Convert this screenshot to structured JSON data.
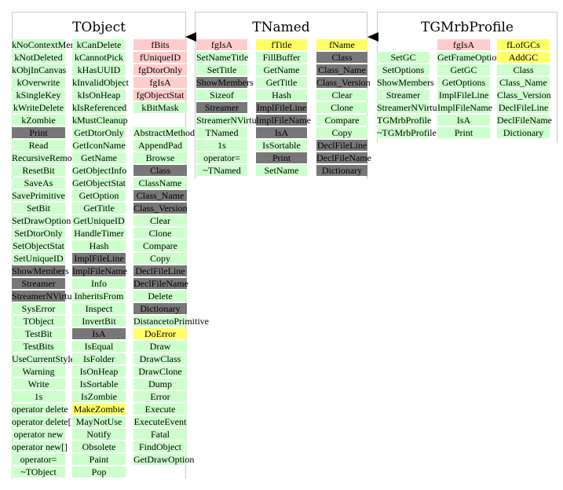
{
  "colors": {
    "method": "#ccffcc",
    "data_member": "#ffcccc",
    "highlight": "#ffff66",
    "inherited": "#777777"
  },
  "classes": [
    {
      "title": "TObject",
      "columns": [
        [
          {
            "t": "kNoContextMenu",
            "c": "green"
          },
          {
            "t": "kNotDeleted",
            "c": "green"
          },
          {
            "t": "kObjInCanvas",
            "c": "green"
          },
          {
            "t": "kOverwrite",
            "c": "green"
          },
          {
            "t": "kSingleKey",
            "c": "green"
          },
          {
            "t": "kWriteDelete",
            "c": "green"
          },
          {
            "t": "kZombie",
            "c": "green"
          },
          {
            "t": "Print",
            "c": "gray"
          },
          {
            "t": "Read",
            "c": "green"
          },
          {
            "t": "RecursiveRemove",
            "c": "green"
          },
          {
            "t": "ResetBit",
            "c": "green"
          },
          {
            "t": "SaveAs",
            "c": "green"
          },
          {
            "t": "SavePrimitive",
            "c": "green"
          },
          {
            "t": "SetBit",
            "c": "green"
          },
          {
            "t": "SetDrawOption",
            "c": "green"
          },
          {
            "t": "SetDtorOnly",
            "c": "green"
          },
          {
            "t": "SetObjectStat",
            "c": "green"
          },
          {
            "t": "SetUniqueID",
            "c": "green"
          },
          {
            "t": "ShowMembers",
            "c": "gray"
          },
          {
            "t": "Streamer",
            "c": "gray"
          },
          {
            "t": "StreamerNVirtual",
            "c": "gray"
          },
          {
            "t": "SysError",
            "c": "green"
          },
          {
            "t": "TObject",
            "c": "green"
          },
          {
            "t": "TestBit",
            "c": "green"
          },
          {
            "t": "TestBits",
            "c": "green"
          },
          {
            "t": "UseCurrentStyle",
            "c": "green"
          },
          {
            "t": "Warning",
            "c": "green"
          },
          {
            "t": "Write",
            "c": "green"
          },
          {
            "t": "1s",
            "c": "green"
          },
          {
            "t": "operator delete",
            "c": "green"
          },
          {
            "t": "operator delete[]",
            "c": "green"
          },
          {
            "t": "operator new",
            "c": "green"
          },
          {
            "t": "operator new[]",
            "c": "green"
          },
          {
            "t": "operator=",
            "c": "green"
          },
          {
            "t": "~TObject",
            "c": "green"
          }
        ],
        [
          {
            "t": "kCanDelete",
            "c": "green"
          },
          {
            "t": "kCannotPick",
            "c": "green"
          },
          {
            "t": "kHasUUID",
            "c": "green"
          },
          {
            "t": "kInvalidObject",
            "c": "green"
          },
          {
            "t": "kIsOnHeap",
            "c": "green"
          },
          {
            "t": "kIsReferenced",
            "c": "green"
          },
          {
            "t": "kMustCleanup",
            "c": "green"
          },
          {
            "t": "GetDtorOnly",
            "c": "green"
          },
          {
            "t": "GetIconName",
            "c": "green"
          },
          {
            "t": "GetName",
            "c": "green"
          },
          {
            "t": "GetObjectInfo",
            "c": "green"
          },
          {
            "t": "GetObjectStat",
            "c": "green"
          },
          {
            "t": "GetOption",
            "c": "green"
          },
          {
            "t": "GetTitle",
            "c": "green"
          },
          {
            "t": "GetUniqueID",
            "c": "green"
          },
          {
            "t": "HandleTimer",
            "c": "green"
          },
          {
            "t": "Hash",
            "c": "green"
          },
          {
            "t": "ImplFileLine",
            "c": "gray"
          },
          {
            "t": "ImplFileName",
            "c": "gray"
          },
          {
            "t": "Info",
            "c": "green"
          },
          {
            "t": "InheritsFrom",
            "c": "green"
          },
          {
            "t": "Inspect",
            "c": "green"
          },
          {
            "t": "InvertBit",
            "c": "green"
          },
          {
            "t": "IsA",
            "c": "gray"
          },
          {
            "t": "IsEqual",
            "c": "green"
          },
          {
            "t": "IsFolder",
            "c": "green"
          },
          {
            "t": "IsOnHeap",
            "c": "green"
          },
          {
            "t": "IsSortable",
            "c": "green"
          },
          {
            "t": "IsZombie",
            "c": "green"
          },
          {
            "t": "MakeZombie",
            "c": "yellow"
          },
          {
            "t": "MayNotUse",
            "c": "green"
          },
          {
            "t": "Notify",
            "c": "green"
          },
          {
            "t": "Obsolete",
            "c": "green"
          },
          {
            "t": "Paint",
            "c": "green"
          },
          {
            "t": "Pop",
            "c": "green"
          }
        ],
        [
          {
            "t": "fBits",
            "c": "pink"
          },
          {
            "t": "fUniqueID",
            "c": "pink"
          },
          {
            "t": "fgDtorOnly",
            "c": "pink"
          },
          {
            "t": "fgIsA",
            "c": "pink"
          },
          {
            "t": "fgObjectStat",
            "c": "pink"
          },
          {
            "t": "kBitMask",
            "c": "green"
          },
          {
            "t": "",
            "c": "none"
          },
          {
            "t": "AbstractMethod",
            "c": "green"
          },
          {
            "t": "AppendPad",
            "c": "green"
          },
          {
            "t": "Browse",
            "c": "green"
          },
          {
            "t": "Class",
            "c": "gray"
          },
          {
            "t": "ClassName",
            "c": "green"
          },
          {
            "t": "Class_Name",
            "c": "gray"
          },
          {
            "t": "Class_Version",
            "c": "gray"
          },
          {
            "t": "Clear",
            "c": "green"
          },
          {
            "t": "Clone",
            "c": "green"
          },
          {
            "t": "Compare",
            "c": "green"
          },
          {
            "t": "Copy",
            "c": "green"
          },
          {
            "t": "DeclFileLine",
            "c": "gray"
          },
          {
            "t": "DeclFileName",
            "c": "gray"
          },
          {
            "t": "Delete",
            "c": "green"
          },
          {
            "t": "Dictionary",
            "c": "gray"
          },
          {
            "t": "DistancetoPrimitive",
            "c": "green"
          },
          {
            "t": "DoError",
            "c": "yellow"
          },
          {
            "t": "Draw",
            "c": "green"
          },
          {
            "t": "DrawClass",
            "c": "green"
          },
          {
            "t": "DrawClone",
            "c": "green"
          },
          {
            "t": "Dump",
            "c": "green"
          },
          {
            "t": "Error",
            "c": "green"
          },
          {
            "t": "Execute",
            "c": "green"
          },
          {
            "t": "ExecuteEvent",
            "c": "green"
          },
          {
            "t": "Fatal",
            "c": "green"
          },
          {
            "t": "FindObject",
            "c": "green"
          },
          {
            "t": "GetDrawOption",
            "c": "green"
          }
        ]
      ]
    },
    {
      "title": "TNamed",
      "columns": [
        [
          {
            "t": "fgIsA",
            "c": "pink"
          },
          {
            "t": "SetNameTitle",
            "c": "green"
          },
          {
            "t": "SetTitle",
            "c": "green"
          },
          {
            "t": "ShowMembers",
            "c": "gray"
          },
          {
            "t": "Sizeof",
            "c": "green"
          },
          {
            "t": "Streamer",
            "c": "gray"
          },
          {
            "t": "StreamerNVirtual",
            "c": "green"
          },
          {
            "t": "TNamed",
            "c": "green"
          },
          {
            "t": "1s",
            "c": "green"
          },
          {
            "t": "operator=",
            "c": "green"
          },
          {
            "t": "~TNamed",
            "c": "green"
          }
        ],
        [
          {
            "t": "fTitle",
            "c": "yellow"
          },
          {
            "t": "FillBuffer",
            "c": "green"
          },
          {
            "t": "GetName",
            "c": "green"
          },
          {
            "t": "GetTitle",
            "c": "green"
          },
          {
            "t": "Hash",
            "c": "green"
          },
          {
            "t": "ImplFileLine",
            "c": "gray"
          },
          {
            "t": "ImplFileName",
            "c": "gray"
          },
          {
            "t": "IsA",
            "c": "gray"
          },
          {
            "t": "IsSortable",
            "c": "green"
          },
          {
            "t": "Print",
            "c": "gray"
          },
          {
            "t": "SetName",
            "c": "green"
          }
        ],
        [
          {
            "t": "fName",
            "c": "yellow"
          },
          {
            "t": "Class",
            "c": "gray"
          },
          {
            "t": "Class_Name",
            "c": "gray"
          },
          {
            "t": "Class_Version",
            "c": "gray"
          },
          {
            "t": "Clear",
            "c": "green"
          },
          {
            "t": "Clone",
            "c": "green"
          },
          {
            "t": "Compare",
            "c": "green"
          },
          {
            "t": "Copy",
            "c": "green"
          },
          {
            "t": "DeclFileLine",
            "c": "gray"
          },
          {
            "t": "DeclFileName",
            "c": "gray"
          },
          {
            "t": "Dictionary",
            "c": "gray"
          }
        ]
      ]
    },
    {
      "title": "TGMrbProfile",
      "columns": [
        [
          {
            "t": "",
            "c": "none"
          },
          {
            "t": "SetGC",
            "c": "green"
          },
          {
            "t": "SetOptions",
            "c": "green"
          },
          {
            "t": "ShowMembers",
            "c": "green"
          },
          {
            "t": "Streamer",
            "c": "green"
          },
          {
            "t": "StreamerNVirtual",
            "c": "green"
          },
          {
            "t": "TGMrbProfile",
            "c": "green"
          },
          {
            "t": "~TGMrbProfile",
            "c": "green"
          }
        ],
        [
          {
            "t": "fgIsA",
            "c": "pink"
          },
          {
            "t": "GetFrameOptions",
            "c": "green"
          },
          {
            "t": "GetGC",
            "c": "green"
          },
          {
            "t": "GetOptions",
            "c": "green"
          },
          {
            "t": "ImplFileLine",
            "c": "green"
          },
          {
            "t": "ImplFileName",
            "c": "green"
          },
          {
            "t": "IsA",
            "c": "green"
          },
          {
            "t": "Print",
            "c": "green"
          }
        ],
        [
          {
            "t": "fLofGCs",
            "c": "yellow"
          },
          {
            "t": "AddGC",
            "c": "yellow"
          },
          {
            "t": "Class",
            "c": "green"
          },
          {
            "t": "Class_Name",
            "c": "green"
          },
          {
            "t": "Class_Version",
            "c": "green"
          },
          {
            "t": "DeclFileLine",
            "c": "green"
          },
          {
            "t": "DeclFileName",
            "c": "green"
          },
          {
            "t": "Dictionary",
            "c": "green"
          }
        ]
      ]
    }
  ]
}
